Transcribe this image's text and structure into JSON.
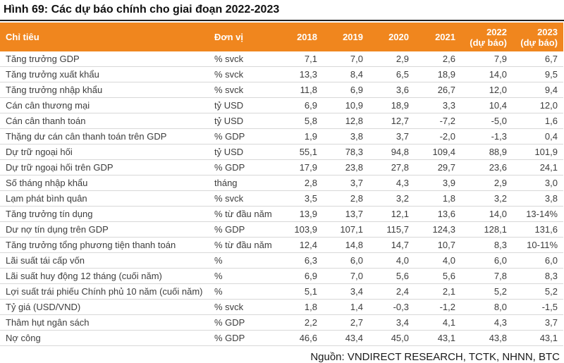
{
  "title": "Hình 69: Các dự báo chính cho giai đoạn 2022-2023",
  "colors": {
    "header_bg": "#F0861E",
    "header_text": "#FFFFFF",
    "row_border": "#D8D8D8",
    "title_rule": "#222222",
    "body_text": "#3D3D3D"
  },
  "table": {
    "columns": [
      {
        "label": "Chỉ tiêu"
      },
      {
        "label": "Đơn vị"
      },
      {
        "label": "2018"
      },
      {
        "label": "2019"
      },
      {
        "label": "2020"
      },
      {
        "label": "2021"
      },
      {
        "label": "2022",
        "sub": "(dự báo)"
      },
      {
        "label": "2023",
        "sub": "(dự báo)"
      }
    ],
    "rows": [
      {
        "label": "Tăng trưởng GDP",
        "unit": "% svck",
        "values": [
          "7,1",
          "7,0",
          "2,9",
          "2,6",
          "7,9",
          "6,7"
        ]
      },
      {
        "label": "Tăng trưởng xuất khẩu",
        "unit": "% svck",
        "values": [
          "13,3",
          "8,4",
          "6,5",
          "18,9",
          "14,0",
          "9,5"
        ]
      },
      {
        "label": "Tăng trưởng nhập khẩu",
        "unit": "% svck",
        "values": [
          "11,8",
          "6,9",
          "3,6",
          "26,7",
          "12,0",
          "9,4"
        ]
      },
      {
        "label": "Cán cân thương mại",
        "unit": "tỷ USD",
        "values": [
          "6,9",
          "10,9",
          "18,9",
          "3,3",
          "10,4",
          "12,0"
        ]
      },
      {
        "label": "Cán cân thanh toán",
        "unit": "tỷ USD",
        "values": [
          "5,8",
          "12,8",
          "12,7",
          "-7,2",
          "-5,0",
          "1,6"
        ]
      },
      {
        "label": "Thặng dư cán cân thanh toán trên GDP",
        "unit": "% GDP",
        "values": [
          "1,9",
          "3,8",
          "3,7",
          "-2,0",
          "-1,3",
          "0,4"
        ]
      },
      {
        "label": "Dự trữ ngoại hối",
        "unit": "tỷ USD",
        "values": [
          "55,1",
          "78,3",
          "94,8",
          "109,4",
          "88,9",
          "101,9"
        ]
      },
      {
        "label": "Dự trữ ngoại hối trên GDP",
        "unit": "% GDP",
        "values": [
          "17,9",
          "23,8",
          "27,8",
          "29,7",
          "23,6",
          "24,1"
        ]
      },
      {
        "label": "Số tháng nhập khẩu",
        "unit": "tháng",
        "values": [
          "2,8",
          "3,7",
          "4,3",
          "3,9",
          "2,9",
          "3,0"
        ]
      },
      {
        "label": "Lạm phát bình quân",
        "unit": "% svck",
        "values": [
          "3,5",
          "2,8",
          "3,2",
          "1,8",
          "3,2",
          "3,8"
        ]
      },
      {
        "label": "Tăng trưởng tín dụng",
        "unit": "% từ đầu năm",
        "values": [
          "13,9",
          "13,7",
          "12,1",
          "13,6",
          "14,0",
          "13-14%"
        ]
      },
      {
        "label": "Dư nợ tín dụng trên GDP",
        "unit": "% GDP",
        "values": [
          "103,9",
          "107,1",
          "115,7",
          "124,3",
          "128,1",
          "131,6"
        ]
      },
      {
        "label": "Tăng trưởng tổng phương tiện thanh toán",
        "unit": "% từ đầu năm",
        "values": [
          "12,4",
          "14,8",
          "14,7",
          "10,7",
          "8,3",
          "10-11%"
        ]
      },
      {
        "label": "Lãi suất tái cấp vốn",
        "unit": "%",
        "values": [
          "6,3",
          "6,0",
          "4,0",
          "4,0",
          "6,0",
          "6,0"
        ]
      },
      {
        "label": "Lãi suất huy động 12 tháng (cuối năm)",
        "unit": "%",
        "values": [
          "6,9",
          "7,0",
          "5,6",
          "5,6",
          "7,8",
          "8,3"
        ]
      },
      {
        "label": "Lợi suất trái phiếu Chính phủ 10 năm (cuối năm)",
        "unit": "%",
        "values": [
          "5,1",
          "3,4",
          "2,4",
          "2,1",
          "5,2",
          "5,2"
        ]
      },
      {
        "label": "Tỷ giá (USD/VND)",
        "unit": "% svck",
        "values": [
          "1,8",
          "1,4",
          "-0,3",
          "-1,2",
          "8,0",
          "-1,5"
        ]
      },
      {
        "label": "Thâm hụt ngân sách",
        "unit": "% GDP",
        "values": [
          "2,2",
          "2,7",
          "3,4",
          "4,1",
          "4,3",
          "3,7"
        ]
      },
      {
        "label": "Nợ công",
        "unit": "% GDP",
        "values": [
          "46,6",
          "43,4",
          "45,0",
          "43,1",
          "43,8",
          "43,1"
        ]
      }
    ]
  },
  "footer": {
    "source": "Nguồn: VNDIRECT RESEARCH, TCTK, NHNN, BTC"
  }
}
